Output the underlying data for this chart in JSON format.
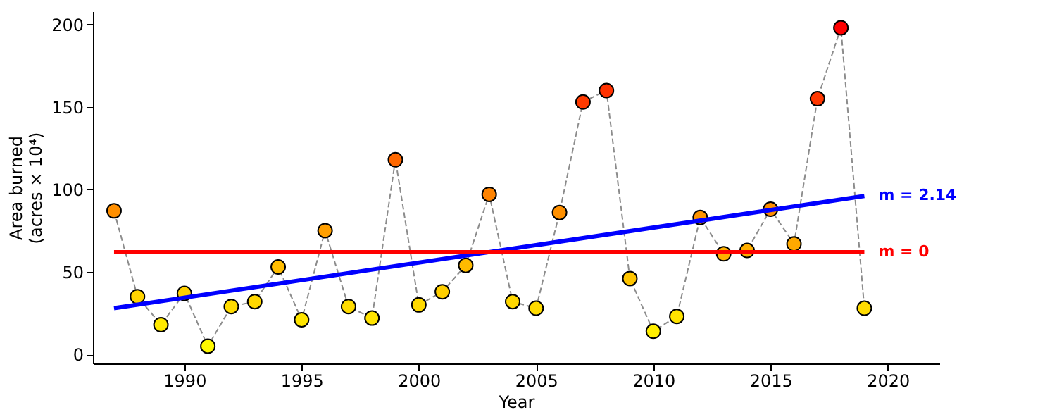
{
  "chart_data": {
    "type": "line",
    "xlabel": "Year",
    "ylabel": "Area burned\n(acres × 10⁴)",
    "xlim": [
      1986.1,
      2022.2
    ],
    "ylim": [
      -5.5,
      208
    ],
    "xticks": [
      1990,
      1995,
      2000,
      2005,
      2010,
      2015,
      2020
    ],
    "yticks": [
      0,
      50,
      100,
      150,
      200
    ],
    "grid": false,
    "series": [
      {
        "marker": "circle",
        "line_style": "dashed",
        "color": "#8c8c8c",
        "x": [
          1987,
          1988,
          1989,
          1990,
          1991,
          1992,
          1993,
          1994,
          1995,
          1996,
          1997,
          1998,
          1999,
          2000,
          2001,
          2002,
          2003,
          2004,
          2005,
          2006,
          2007,
          2008,
          2009,
          2010,
          2011,
          2012,
          2013,
          2014,
          2015,
          2016,
          2017,
          2018,
          2019
        ],
        "values": [
          87,
          35,
          18,
          37,
          5,
          29,
          32,
          53,
          21,
          75,
          29,
          22,
          118,
          30,
          38,
          54,
          97,
          32,
          28,
          86,
          153,
          160,
          46,
          14,
          23,
          83,
          61,
          63,
          88,
          67,
          155,
          198,
          28
        ],
        "colors": [
          "#ff8f00",
          "#ffd400",
          "#ffe900",
          "#ffd000",
          "#fff900",
          "#ffdb00",
          "#ffd700",
          "#ffbd00",
          "#ffe500",
          "#ff9f00",
          "#ffdb00",
          "#ffe300",
          "#ff6800",
          "#ffd900",
          "#ffcf00",
          "#ffbb00",
          "#ff8300",
          "#ffd700",
          "#ffdb00",
          "#ff9000",
          "#ff3a00",
          "#ff3100",
          "#ffc500",
          "#ffee00",
          "#ffe300",
          "#ff9500",
          "#ffb100",
          "#ffae00",
          "#ff8e00",
          "#ffa900",
          "#ff3700",
          "#ff0000",
          "#ffdb00"
        ]
      },
      {
        "name": "m = 2.14",
        "color": "#0000ff",
        "line_style": "solid",
        "marker": "none",
        "x": [
          1987,
          2019
        ],
        "values": [
          28,
          96
        ]
      },
      {
        "name": "m = 0",
        "color": "#ff0000",
        "line_style": "solid",
        "marker": "none",
        "x": [
          1987,
          2019
        ],
        "values": [
          62,
          62
        ]
      }
    ]
  }
}
